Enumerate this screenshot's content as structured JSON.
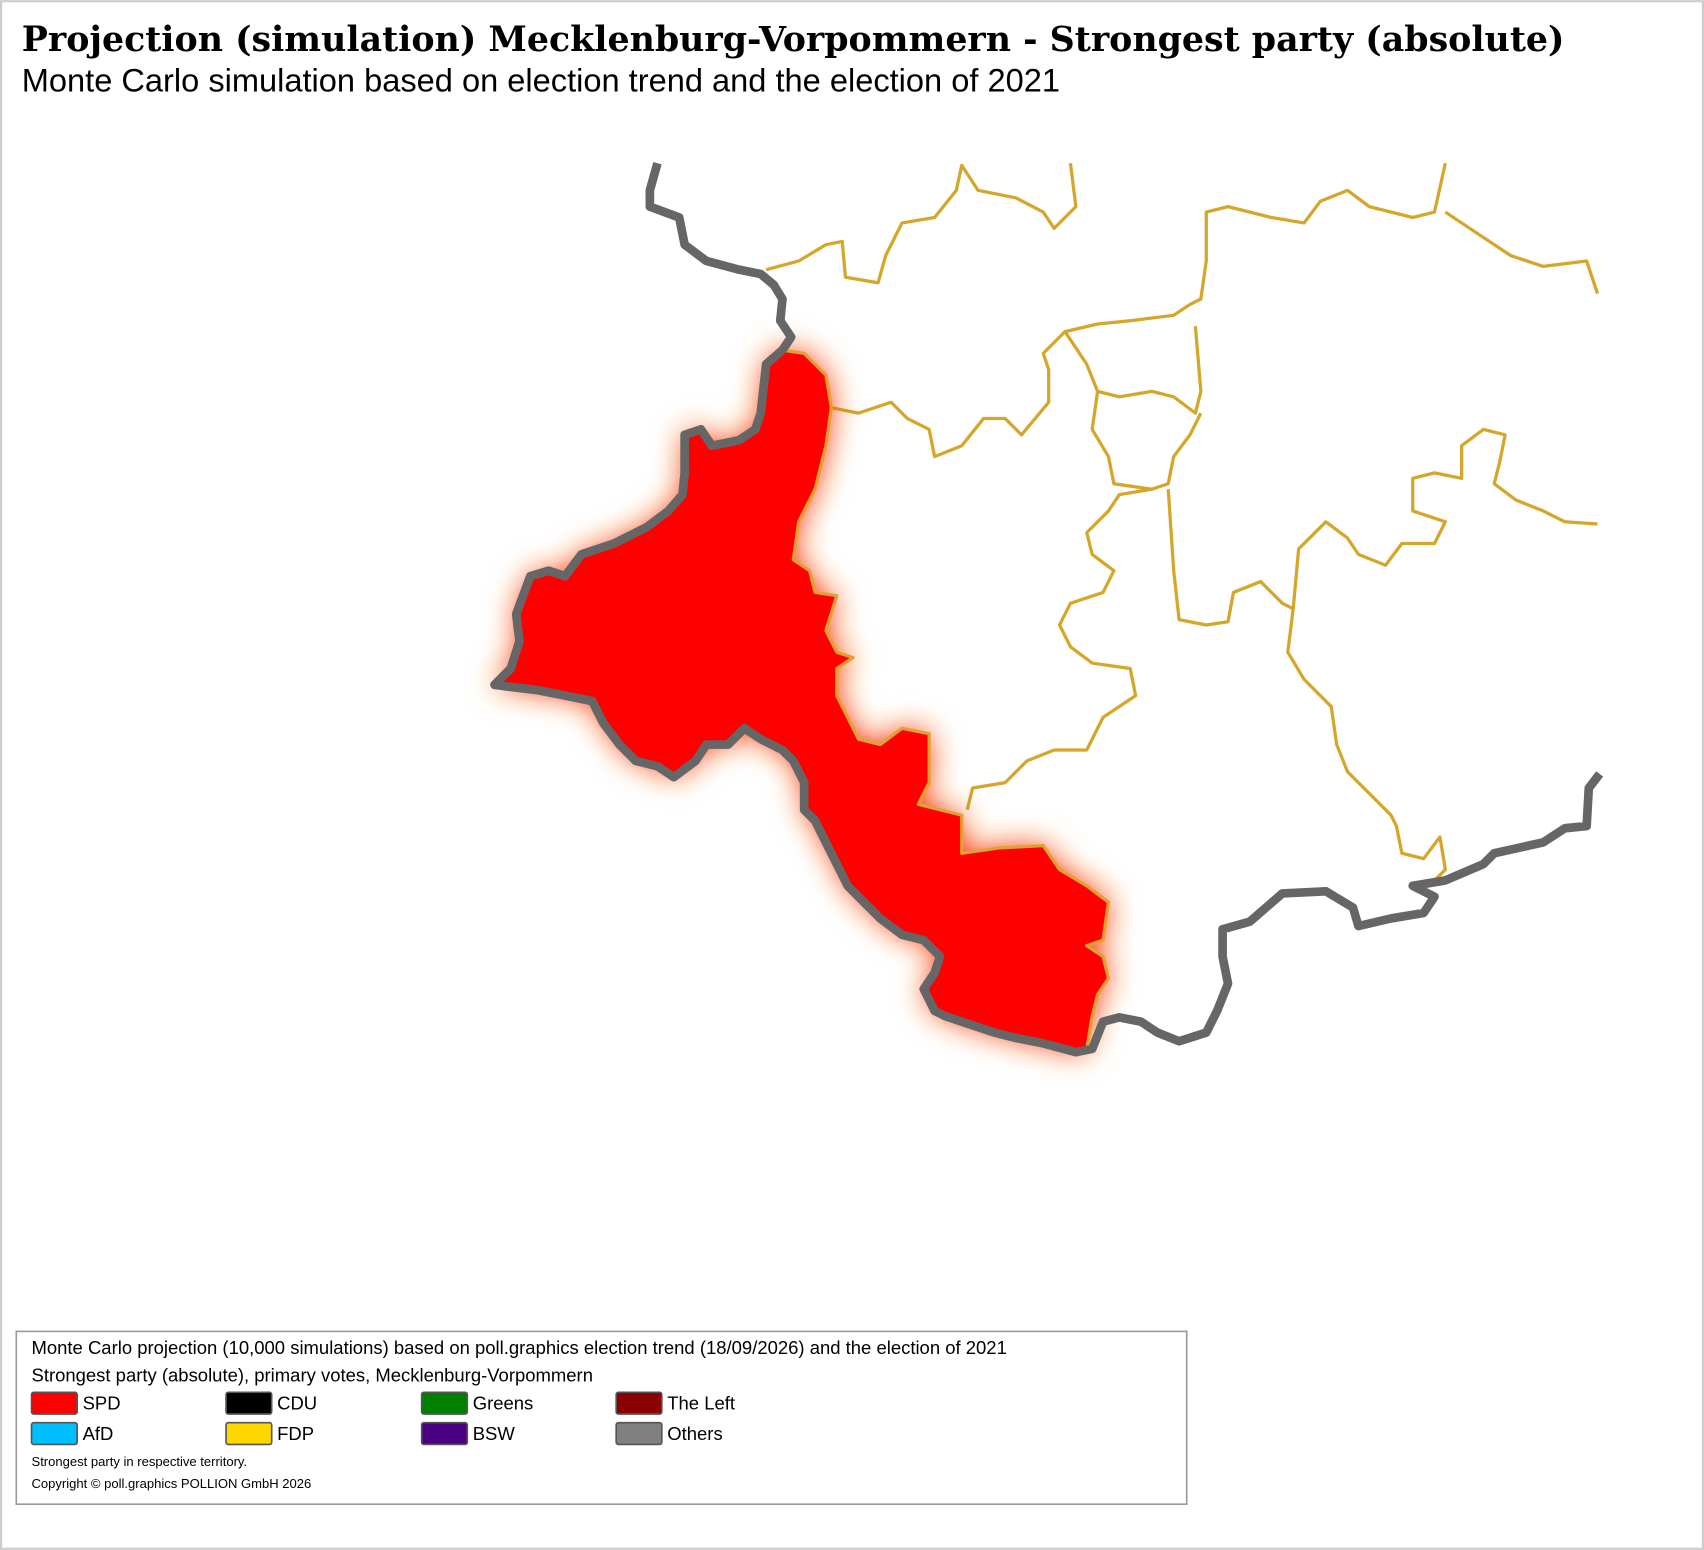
{
  "header": {
    "title": "Projection (simulation) Mecklenburg-Vorpommern - Strongest party (absolute)",
    "subtitle": "Monte Carlo simulation based on election trend and the election of 2021"
  },
  "legend": {
    "lines": [
      "Monte Carlo projection (10,000 simulations) based on poll.graphics election trend (18/09/2026) and the election of 2021",
      "Strongest party (absolute), primary votes, Mecklenburg-Vorpommern"
    ],
    "items": [
      {
        "name": "SPD",
        "color": "#ff0000"
      },
      {
        "name": "CDU",
        "color": "#000000"
      },
      {
        "name": "Greens",
        "color": "#008000"
      },
      {
        "name": "The Left",
        "color": "#8b0000"
      },
      {
        "name": "AfD",
        "color": "#00bfff"
      },
      {
        "name": "FDP",
        "color": "#ffd700"
      },
      {
        "name": "BSW",
        "color": "#4b0082"
      },
      {
        "name": "Others",
        "color": "#808080"
      }
    ],
    "notes": [
      "Strongest party in respective territory.",
      "Copyright © poll.graphics POLLION GmbH 2026"
    ]
  }
}
